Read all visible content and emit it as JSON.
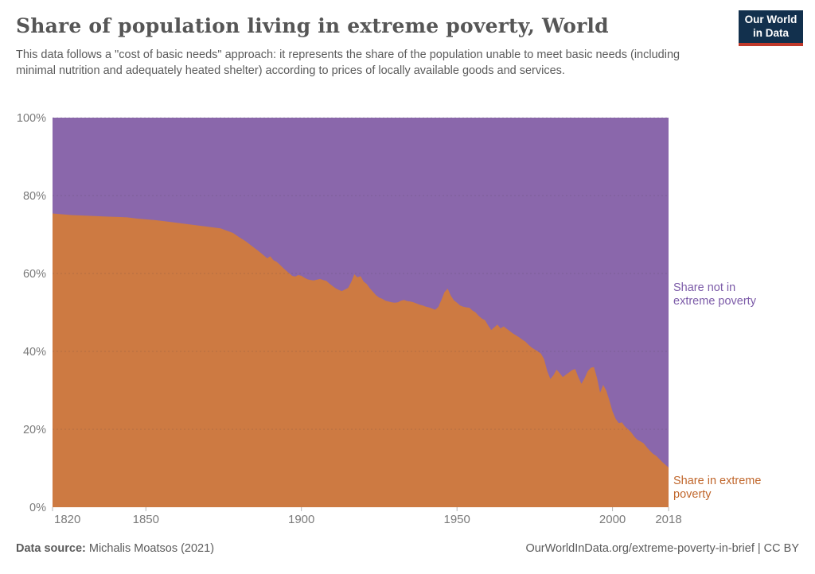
{
  "header": {
    "title": "Share of population living in extreme poverty, World",
    "subtitle": "This data follows a \"cost of basic needs\" approach: it represents the share of the population unable to meet basic needs (including minimal nutrition and adequately heated shelter) according to prices of locally available goods and services."
  },
  "logo": {
    "line1": "Our World",
    "line2": "in Data",
    "bg_color": "#12304d",
    "accent_color": "#c0392b",
    "text_color": "#ffffff"
  },
  "chart_data": {
    "type": "area",
    "stacked": true,
    "title": "Share of population living in extreme poverty, World",
    "xlabel": "",
    "ylabel": "",
    "axis_color": "#7a7a7a",
    "gridlines": "dashed",
    "legend_position": "right-edge-labels",
    "x_axis": {
      "range": [
        1820,
        2018
      ],
      "ticks": [
        1820,
        1850,
        1900,
        1950,
        2000,
        2018
      ]
    },
    "y_axis": {
      "range": [
        0,
        100
      ],
      "unit": "%",
      "ticks": [
        {
          "value": 0,
          "label": "0%"
        },
        {
          "value": 20,
          "label": "20%"
        },
        {
          "value": 40,
          "label": "40%"
        },
        {
          "value": 60,
          "label": "60%"
        },
        {
          "value": 80,
          "label": "80%"
        },
        {
          "value": 100,
          "label": "100%"
        }
      ]
    },
    "x": [
      1820,
      1823,
      1826,
      1829,
      1832,
      1835,
      1838,
      1841,
      1844,
      1847,
      1850,
      1853,
      1856,
      1859,
      1862,
      1865,
      1868,
      1871,
      1874,
      1876,
      1878,
      1880,
      1882,
      1884,
      1886,
      1888,
      1889,
      1890,
      1891,
      1892,
      1893,
      1894,
      1895,
      1896,
      1897,
      1898,
      1899,
      1900,
      1901,
      1902,
      1903,
      1904,
      1905,
      1906,
      1907,
      1908,
      1909,
      1910,
      1911,
      1912,
      1913,
      1914,
      1915,
      1916,
      1917,
      1918,
      1919,
      1920,
      1921,
      1922,
      1923,
      1924,
      1925,
      1926,
      1927,
      1928,
      1929,
      1930,
      1931,
      1932,
      1933,
      1934,
      1935,
      1936,
      1937,
      1938,
      1939,
      1940,
      1941,
      1942,
      1943,
      1944,
      1945,
      1946,
      1947,
      1948,
      1949,
      1950,
      1951,
      1952,
      1953,
      1954,
      1955,
      1956,
      1957,
      1958,
      1959,
      1960,
      1961,
      1962,
      1963,
      1964,
      1965,
      1966,
      1967,
      1968,
      1969,
      1970,
      1971,
      1972,
      1973,
      1974,
      1975,
      1976,
      1977,
      1978,
      1979,
      1980,
      1981,
      1982,
      1983,
      1984,
      1985,
      1986,
      1987,
      1988,
      1989,
      1990,
      1991,
      1992,
      1993,
      1994,
      1995,
      1996,
      1997,
      1998,
      1999,
      2000,
      2001,
      2002,
      2003,
      2004,
      2005,
      2006,
      2007,
      2008,
      2009,
      2010,
      2011,
      2012,
      2013,
      2014,
      2015,
      2016,
      2017,
      2018
    ],
    "series": [
      {
        "name": "Share in extreme poverty",
        "label_lines": [
          "Share in extreme",
          "poverty"
        ],
        "color": "#cd7a42",
        "label_color": "#c0662b",
        "values": [
          75.4,
          75.2,
          75.0,
          74.9,
          74.8,
          74.7,
          74.6,
          74.5,
          74.4,
          74.1,
          73.9,
          73.7,
          73.4,
          73.1,
          72.8,
          72.5,
          72.2,
          71.9,
          71.6,
          71.0,
          70.4,
          69.3,
          68.3,
          67.1,
          65.9,
          64.6,
          63.9,
          64.4,
          63.4,
          63.0,
          62.3,
          61.5,
          60.8,
          60.1,
          59.4,
          59.2,
          59.6,
          59.4,
          58.9,
          58.5,
          58.3,
          58.2,
          58.4,
          58.6,
          58.3,
          58.1,
          57.4,
          56.8,
          56.2,
          55.8,
          55.5,
          55.9,
          56.3,
          57.8,
          59.8,
          59.0,
          59.3,
          57.9,
          57.3,
          56.2,
          55.3,
          54.4,
          53.8,
          53.5,
          53.0,
          52.8,
          52.6,
          52.5,
          52.6,
          53.0,
          53.2,
          52.9,
          52.8,
          52.6,
          52.3,
          52.0,
          51.8,
          51.5,
          51.3,
          51.0,
          50.7,
          51.4,
          53.2,
          55.2,
          56.1,
          54.3,
          53.1,
          52.5,
          51.8,
          51.5,
          51.3,
          51.2,
          50.5,
          50.0,
          49.1,
          48.4,
          48.0,
          46.7,
          45.5,
          46.2,
          46.9,
          45.9,
          46.4,
          45.8,
          45.2,
          44.6,
          44.1,
          43.6,
          43.0,
          42.5,
          41.7,
          41.0,
          40.5,
          40.0,
          39.4,
          38.0,
          35.0,
          32.9,
          33.9,
          35.3,
          34.4,
          33.4,
          34.0,
          34.6,
          35.2,
          35.5,
          33.4,
          31.7,
          33.1,
          34.9,
          35.8,
          36.0,
          33.2,
          29.4,
          31.4,
          29.9,
          27.4,
          24.6,
          22.7,
          21.6,
          21.8,
          20.7,
          20.0,
          19.2,
          18.1,
          17.3,
          16.9,
          16.4,
          15.4,
          14.5,
          13.7,
          13.2,
          12.4,
          11.6,
          10.9,
          10.2
        ]
      },
      {
        "name": "Share not in extreme poverty",
        "label_lines": [
          "Share not in",
          "extreme poverty"
        ],
        "color": "#8a67ab",
        "label_color": "#7c5ba8",
        "derived": "100 minus share in extreme poverty",
        "values": [
          24.6,
          24.8,
          25.0,
          25.1,
          25.2,
          25.3,
          25.4,
          25.5,
          25.6,
          25.9,
          26.1,
          26.3,
          26.6,
          26.9,
          27.2,
          27.5,
          27.8,
          28.1,
          28.4,
          29.0,
          29.6,
          30.7,
          31.7,
          32.9,
          34.1,
          35.4,
          36.1,
          35.6,
          36.6,
          37.0,
          37.7,
          38.5,
          39.2,
          39.9,
          40.6,
          40.8,
          40.4,
          40.6,
          41.1,
          41.5,
          41.7,
          41.8,
          41.6,
          41.4,
          41.7,
          41.9,
          42.6,
          43.2,
          43.8,
          44.2,
          44.5,
          44.1,
          43.7,
          42.2,
          40.2,
          41.0,
          40.7,
          42.1,
          42.7,
          43.8,
          44.7,
          45.6,
          46.2,
          46.5,
          47.0,
          47.2,
          47.4,
          47.5,
          47.4,
          47.0,
          46.8,
          47.1,
          47.2,
          47.4,
          47.7,
          48.0,
          48.2,
          48.5,
          48.7,
          49.0,
          49.3,
          48.6,
          46.8,
          44.8,
          43.9,
          45.7,
          46.9,
          47.5,
          48.2,
          48.5,
          48.7,
          48.8,
          49.5,
          50.0,
          50.9,
          51.6,
          52.0,
          53.3,
          54.5,
          53.8,
          53.1,
          54.1,
          53.6,
          54.2,
          54.8,
          55.4,
          55.9,
          56.4,
          57.0,
          57.5,
          58.3,
          59.0,
          59.5,
          60.0,
          60.6,
          62.0,
          65.0,
          67.1,
          66.1,
          64.7,
          65.6,
          66.6,
          66.0,
          65.4,
          64.8,
          64.5,
          66.6,
          68.3,
          66.9,
          65.1,
          64.2,
          64.0,
          66.8,
          70.6,
          68.6,
          70.1,
          72.6,
          75.4,
          77.3,
          78.4,
          78.2,
          79.3,
          80.0,
          80.8,
          81.9,
          82.7,
          83.1,
          83.6,
          84.6,
          85.5,
          86.3,
          86.8,
          87.6,
          88.4,
          89.1,
          89.8
        ]
      }
    ]
  },
  "footer": {
    "source_label": "Data source:",
    "source_value": "Michalis Moatsos (2021)",
    "link": "OurWorldInData.org/extreme-poverty-in-brief | CC BY"
  }
}
